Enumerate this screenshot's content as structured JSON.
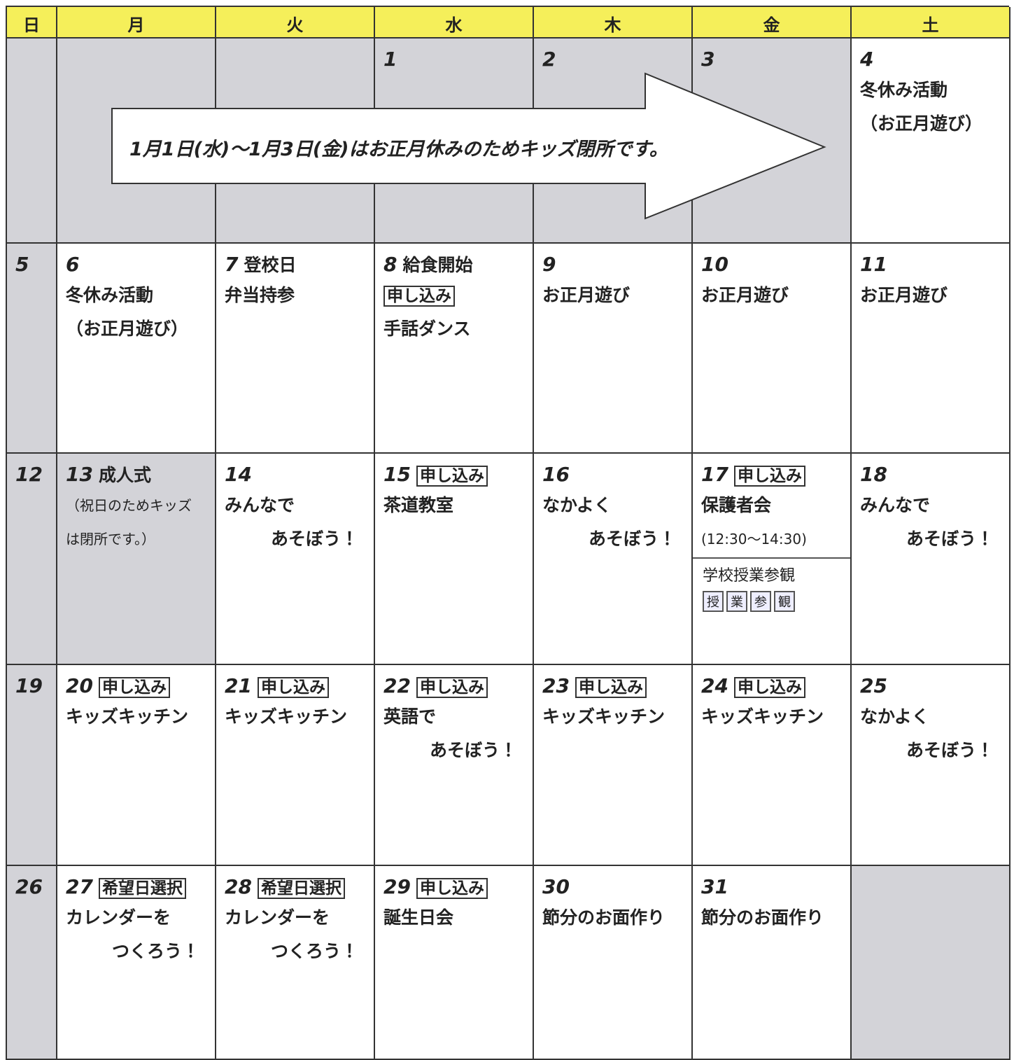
{
  "header": {
    "days": [
      "日",
      "月",
      "火",
      "水",
      "木",
      "金",
      "土"
    ]
  },
  "banner": "1月1日(水)～1月3日(金)はお正月休みのためキッズ閉所です。",
  "weeks": [
    [
      null,
      null,
      null,
      {
        "date": "1",
        "closed": true
      },
      {
        "date": "2",
        "closed": true
      },
      {
        "date": "3",
        "closed": true
      },
      {
        "date": "4",
        "lines": [
          "冬休み活動",
          "（お正月遊び）"
        ]
      }
    ],
    [
      {
        "date": "5"
      },
      {
        "date": "6",
        "lines": [
          "冬休み活動",
          "（お正月遊び）"
        ]
      },
      {
        "date": "7",
        "heading": "登校日",
        "lines": [
          "弁当持参"
        ]
      },
      {
        "date": "8",
        "heading": "給食開始",
        "lines": [
          {
            "tag": "申し込み"
          },
          "手話ダンス"
        ]
      },
      {
        "date": "9",
        "lines": [
          "お正月遊び"
        ]
      },
      {
        "date": "10",
        "lines": [
          "お正月遊び"
        ]
      },
      {
        "date": "11",
        "lines": [
          "お正月遊び"
        ]
      }
    ],
    [
      {
        "date": "12"
      },
      {
        "date": "13",
        "heading": "成人式",
        "closed": true,
        "lines": [
          "（祝日のためキッズ",
          "は閉所です。）"
        ]
      },
      {
        "date": "14",
        "lines": [
          "みんなで",
          {
            "text": "あそぼう！",
            "align": "right"
          }
        ]
      },
      {
        "date": "15",
        "tag": "申し込み",
        "lines": [
          "茶道教室"
        ]
      },
      {
        "date": "16",
        "lines": [
          "なかよく",
          {
            "text": "あそぼう！",
            "align": "right"
          }
        ]
      },
      {
        "date": "17",
        "tag": "申し込み",
        "lines": [
          "保護者会",
          "(12:30～14:30)"
        ],
        "sub": {
          "title": "学校授業参観",
          "boxes": [
            "授",
            "業",
            "参",
            "観"
          ]
        }
      },
      {
        "date": "18",
        "lines": [
          "みんなで",
          {
            "text": "あそぼう！",
            "align": "right"
          }
        ]
      }
    ],
    [
      {
        "date": "19"
      },
      {
        "date": "20",
        "tag": "申し込み",
        "lines": [
          "キッズキッチン"
        ]
      },
      {
        "date": "21",
        "tag": "申し込み",
        "lines": [
          "キッズキッチン"
        ]
      },
      {
        "date": "22",
        "tag": "申し込み",
        "lines": [
          "英語で",
          {
            "text": "あそぼう！",
            "align": "right"
          }
        ]
      },
      {
        "date": "23",
        "tag": "申し込み",
        "lines": [
          "キッズキッチン"
        ]
      },
      {
        "date": "24",
        "tag": "申し込み",
        "lines": [
          "キッズキッチン"
        ]
      },
      {
        "date": "25",
        "lines": [
          "なかよく",
          {
            "text": "あそぼう！",
            "align": "right"
          }
        ]
      }
    ],
    [
      {
        "date": "26"
      },
      {
        "date": "27",
        "tag": "希望日選択",
        "lines": [
          "カレンダーを",
          {
            "text": "つくろう！",
            "align": "right"
          }
        ]
      },
      {
        "date": "28",
        "tag": "希望日選択",
        "lines": [
          "カレンダーを",
          {
            "text": "つくろう！",
            "align": "right"
          }
        ]
      },
      {
        "date": "29",
        "tag": "申し込み",
        "lines": [
          "誕生日会"
        ]
      },
      {
        "date": "30",
        "lines": [
          "節分のお面作り"
        ]
      },
      {
        "date": "31",
        "lines": [
          "節分のお面作り"
        ]
      },
      null
    ]
  ]
}
